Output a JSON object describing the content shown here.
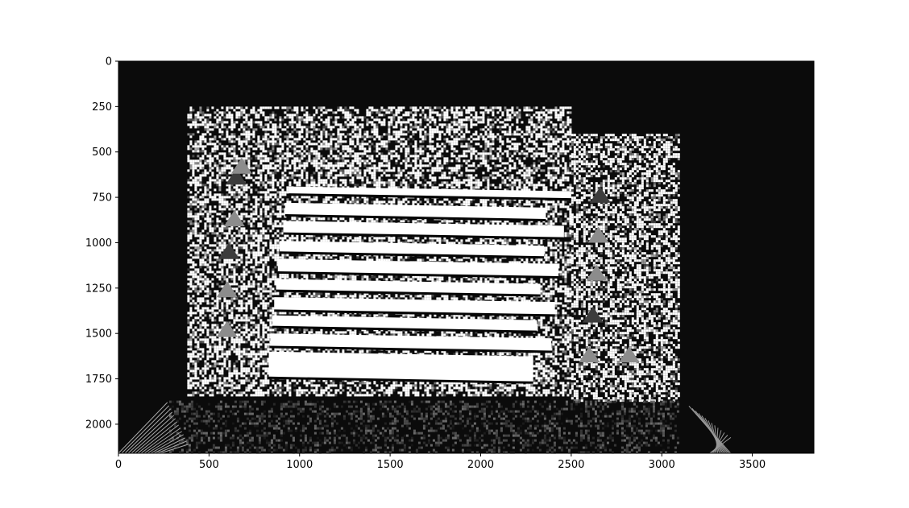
{
  "chart_data": {
    "type": "heatmap",
    "description_kind": "grayscale image rendered with matplotlib imshow",
    "title": "",
    "xlabel": "",
    "ylabel": "",
    "xlim": [
      0,
      3840
    ],
    "ylim": [
      2160,
      0
    ],
    "x_ticks": [
      0,
      500,
      1000,
      1500,
      2000,
      2500,
      3000,
      3500
    ],
    "y_ticks": [
      0,
      250,
      500,
      750,
      1000,
      1250,
      1500,
      1750,
      2000
    ],
    "x_tick_labels": [
      "0",
      "500",
      "1000",
      "1500",
      "2000",
      "2500",
      "3000",
      "3500"
    ],
    "y_tick_labels": [
      "0",
      "250",
      "500",
      "750",
      "1000",
      "1250",
      "1500",
      "1750",
      "2000"
    ],
    "grid": false,
    "colormap": "gray",
    "colors": {
      "background": "#0b0b0b",
      "bright": "#ffffff",
      "mid": "#8c8c8c",
      "dark_mid": "#3c3c3c"
    },
    "image_regions": [
      {
        "kind": "noisy_panel",
        "x": [
          380,
          2500
        ],
        "y": [
          250,
          1840
        ]
      },
      {
        "kind": "noisy_panel",
        "x": [
          2500,
          3090
        ],
        "y": [
          400,
          1870
        ]
      },
      {
        "kind": "bottom_noise",
        "x": [
          280,
          3090
        ],
        "y": [
          1870,
          2160
        ]
      }
    ],
    "stripes": [
      {
        "x": [
          940,
          2500
        ],
        "y": [
          690,
          730
        ]
      },
      {
        "x": [
          920,
          2360
        ],
        "y": [
          780,
          845
        ]
      },
      {
        "x": [
          910,
          2460
        ],
        "y": [
          880,
          945
        ]
      },
      {
        "x": [
          890,
          2350
        ],
        "y": [
          990,
          1050
        ]
      },
      {
        "x": [
          880,
          2430
        ],
        "y": [
          1090,
          1160
        ]
      },
      {
        "x": [
          870,
          2330
        ],
        "y": [
          1200,
          1260
        ]
      },
      {
        "x": [
          860,
          2410
        ],
        "y": [
          1300,
          1370
        ]
      },
      {
        "x": [
          850,
          2310
        ],
        "y": [
          1400,
          1460
        ]
      },
      {
        "x": [
          840,
          2390
        ],
        "y": [
          1500,
          1570
        ]
      },
      {
        "x": [
          830,
          2290
        ],
        "y": [
          1600,
          1740
        ]
      }
    ],
    "gray_triangles": [
      [
        650,
        640
      ],
      [
        680,
        580
      ],
      [
        640,
        870
      ],
      [
        610,
        1050
      ],
      [
        600,
        1260
      ],
      [
        600,
        1480
      ],
      [
        2660,
        740
      ],
      [
        2650,
        960
      ],
      [
        2640,
        1170
      ],
      [
        2620,
        1400
      ],
      [
        2600,
        1620
      ],
      [
        2820,
        1620
      ]
    ]
  }
}
